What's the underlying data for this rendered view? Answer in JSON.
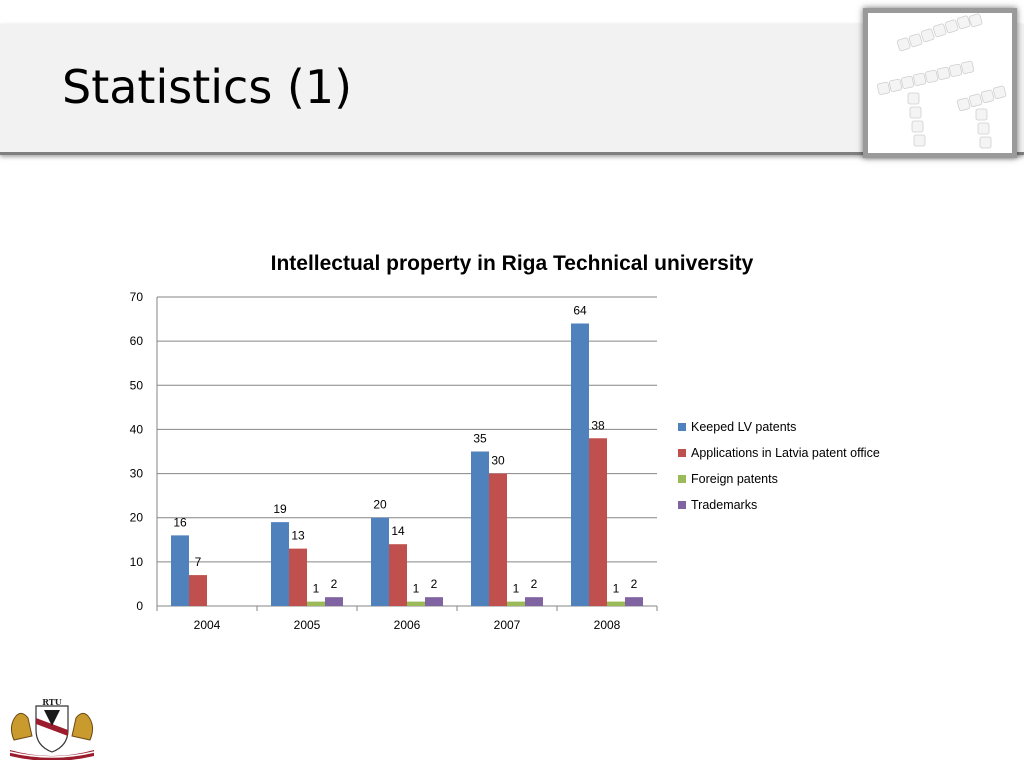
{
  "slide": {
    "title": "Statistics (1)"
  },
  "logo": {
    "text": "RTU"
  },
  "chart_data": {
    "type": "bar",
    "title": "Intellectual property in Riga Technical university",
    "categories": [
      "2004",
      "2005",
      "2006",
      "2007",
      "2008"
    ],
    "series": [
      {
        "name": "Keeped LV patents",
        "color": "#4f81bd",
        "values": [
          16,
          19,
          20,
          35,
          64
        ],
        "labels": [
          "16",
          "19",
          "20",
          "35",
          "64"
        ]
      },
      {
        "name": "Applications in Latvia patent office",
        "color": "#c0504d",
        "values": [
          7,
          13,
          14,
          30,
          38
        ],
        "labels": [
          "7",
          "13",
          "14",
          "30",
          "38"
        ]
      },
      {
        "name": "Foreign patents",
        "color": "#9bbb59",
        "values": [
          null,
          1,
          1,
          1,
          1
        ],
        "labels": [
          null,
          "1",
          "1",
          "1",
          "1"
        ]
      },
      {
        "name": "Trademarks",
        "color": "#8064a2",
        "values": [
          null,
          2,
          2,
          2,
          2
        ],
        "labels": [
          null,
          "2",
          "2",
          "2",
          "2"
        ]
      }
    ],
    "ylim": [
      0,
      70
    ],
    "yticks": [
      0,
      10,
      20,
      30,
      40,
      50,
      60,
      70
    ],
    "grid": true,
    "legend_position": "right"
  }
}
